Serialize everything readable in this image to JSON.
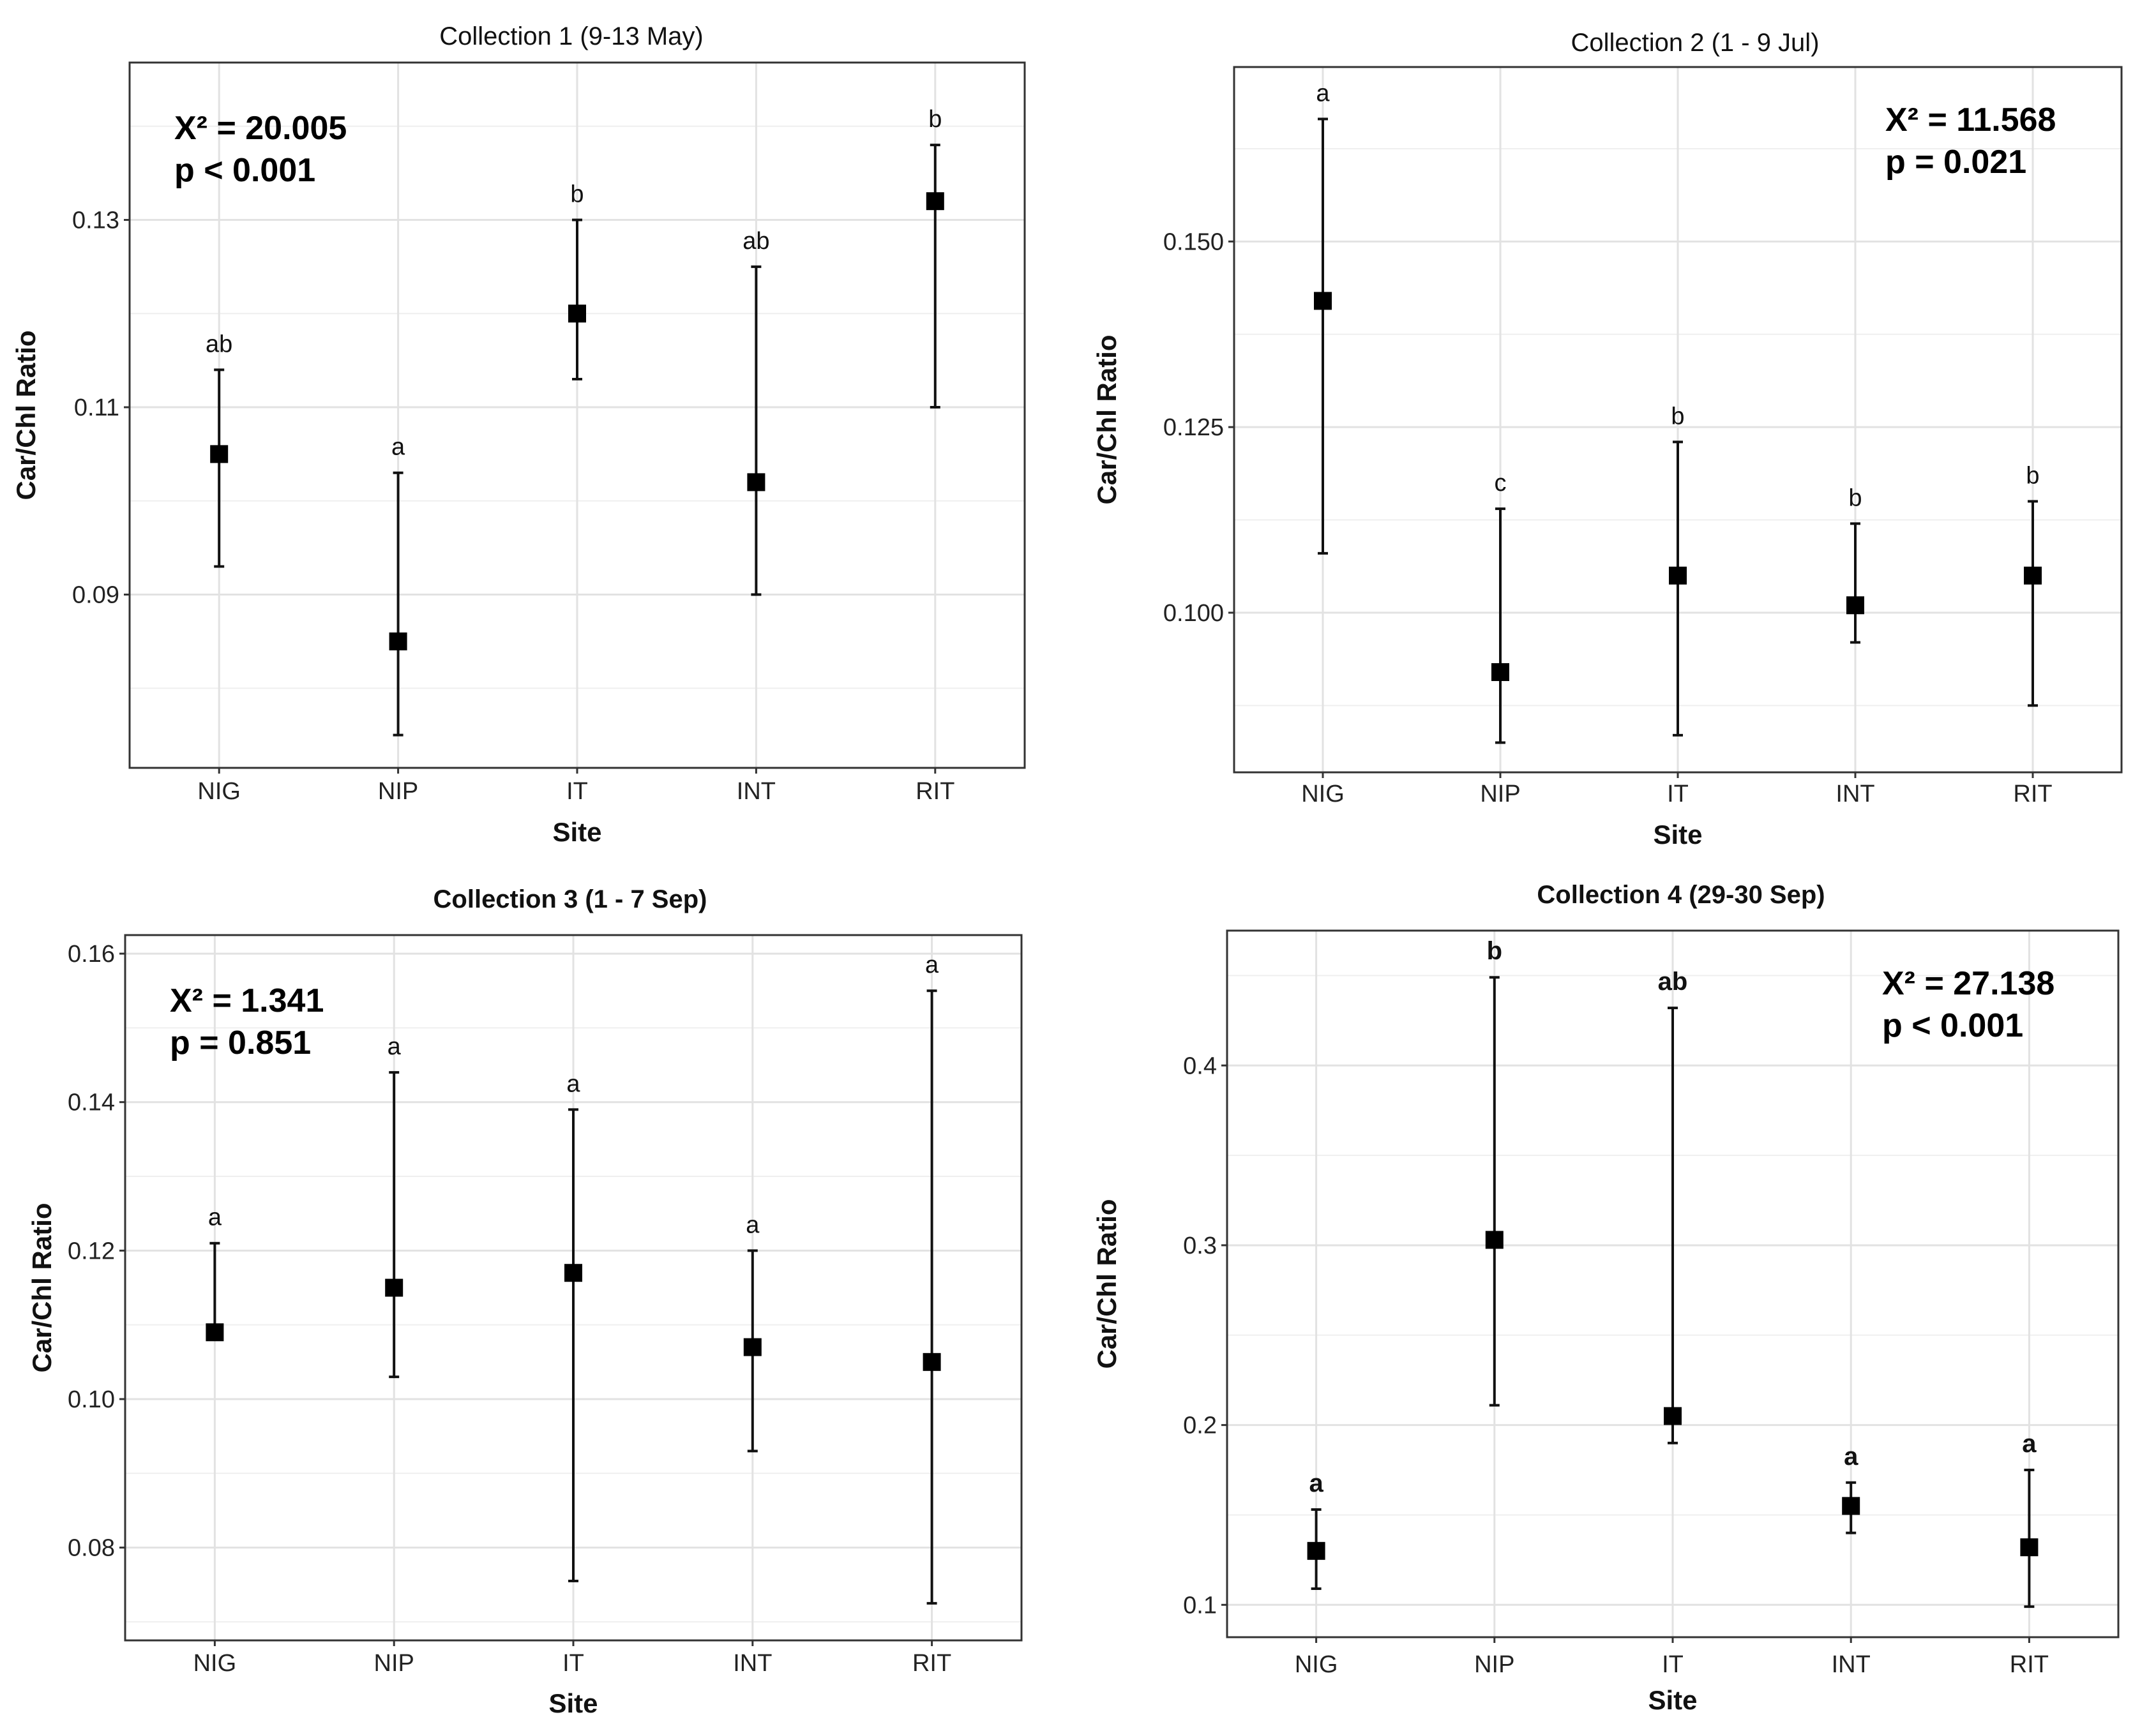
{
  "chart_data": [
    {
      "type": "scatter",
      "title": "Collection 1 (9-13 May)",
      "xlabel": "Site",
      "ylabel": "Car/Chl Ratio",
      "categories": [
        "NIG",
        "NIP",
        "IT",
        "INT",
        "RIT"
      ],
      "values": [
        0.105,
        0.085,
        0.12,
        0.102,
        0.132
      ],
      "lower": [
        0.093,
        0.075,
        0.113,
        0.09,
        0.11
      ],
      "upper": [
        0.114,
        0.103,
        0.13,
        0.125,
        0.138
      ],
      "letters": [
        "ab",
        "a",
        "b",
        "ab",
        "b"
      ],
      "yticks": [
        0.09,
        0.11,
        0.13
      ],
      "ytick_labels": [
        "0.09",
        "0.11",
        "0.13"
      ],
      "ylim": [
        0.0715,
        0.1468
      ],
      "stat_line1": "X² = 20.005",
      "stat_line2": "p < 0.001",
      "stat_position": "top-left",
      "grid": true
    },
    {
      "type": "scatter",
      "title": "Collection 2 (1 - 9 Jul)",
      "xlabel": "Site",
      "ylabel": "Car/Chl Ratio",
      "categories": [
        "NIG",
        "NIP",
        "IT",
        "INT",
        "RIT"
      ],
      "values": [
        0.142,
        0.092,
        0.105,
        0.101,
        0.105
      ],
      "lower": [
        0.108,
        0.0825,
        0.0835,
        0.096,
        0.0875
      ],
      "upper": [
        0.1665,
        0.114,
        0.123,
        0.112,
        0.115
      ],
      "letters": [
        "a",
        "c",
        "b",
        "b",
        "b"
      ],
      "yticks": [
        0.1,
        0.125,
        0.15
      ],
      "ytick_labels": [
        "0.100",
        "0.125",
        "0.150"
      ],
      "ylim": [
        0.0785,
        0.1735
      ],
      "stat_line1": "X² = 11.568",
      "stat_line2": "p = 0.021",
      "stat_position": "top-right",
      "grid": true
    },
    {
      "type": "scatter",
      "title": "Collection 3 (1 - 7 Sep)",
      "xlabel": "Site",
      "ylabel": "Car/Chl Ratio",
      "categories": [
        "NIG",
        "NIP",
        "IT",
        "INT",
        "RIT"
      ],
      "values": [
        0.109,
        0.115,
        0.117,
        0.107,
        0.105
      ],
      "lower": [
        0.109,
        0.103,
        0.0755,
        0.093,
        0.0725
      ],
      "upper": [
        0.121,
        0.144,
        0.139,
        0.12,
        0.155
      ],
      "letters": [
        "a",
        "a",
        "a",
        "a",
        "a"
      ],
      "yticks": [
        0.08,
        0.1,
        0.12,
        0.14,
        0.16
      ],
      "ytick_labels": [
        "0.08",
        "0.10",
        "0.12",
        "0.14",
        "0.16"
      ],
      "ylim": [
        0.0675,
        0.1625
      ],
      "stat_line1": "X² = 1.341",
      "stat_line2": "p = 0.851",
      "stat_position": "top-left",
      "grid": true
    },
    {
      "type": "scatter",
      "title": "Collection 4 (29-30 Sep)",
      "xlabel": "Site",
      "ylabel": "Car/Chl Ratio",
      "categories": [
        "NIG",
        "NIP",
        "IT",
        "INT",
        "RIT"
      ],
      "values": [
        0.13,
        0.303,
        0.205,
        0.155,
        0.132
      ],
      "lower": [
        0.109,
        0.211,
        0.19,
        0.14,
        0.099
      ],
      "upper": [
        0.153,
        0.449,
        0.432,
        0.168,
        0.175
      ],
      "letters": [
        "a",
        "b",
        "ab",
        "a",
        "a"
      ],
      "yticks": [
        0.1,
        0.2,
        0.3,
        0.4
      ],
      "ytick_labels": [
        "0.1",
        "0.2",
        "0.3",
        "0.4"
      ],
      "ylim": [
        0.082,
        0.475
      ],
      "stat_line1": "X² = 27.138",
      "stat_line2": "p < 0.001",
      "stat_position": "top-right",
      "grid": true
    }
  ]
}
